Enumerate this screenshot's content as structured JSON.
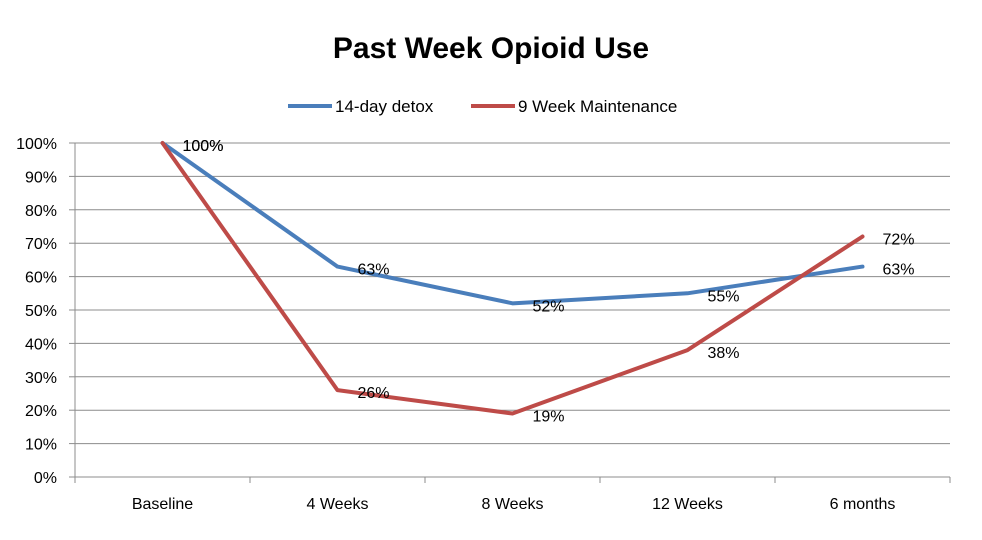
{
  "chart_data": {
    "type": "line",
    "title": "Past Week Opioid Use",
    "categories": [
      "Baseline",
      "4 Weeks",
      "8 Weeks",
      "12 Weeks",
      "6 months"
    ],
    "series": [
      {
        "name": "14-day detox",
        "color": "#4a7ebb",
        "values": [
          100,
          63,
          52,
          55,
          63
        ],
        "labels": [
          "100%",
          "63%",
          "52%",
          "55%",
          "63%"
        ]
      },
      {
        "name": "9 Week Maintenance",
        "color": "#be4b48",
        "values": [
          100,
          26,
          19,
          38,
          72
        ],
        "labels": [
          "100%",
          "26%",
          "19%",
          "38%",
          "72%"
        ]
      }
    ],
    "ylim": [
      0,
      100
    ],
    "yticks": [
      0,
      10,
      20,
      30,
      40,
      50,
      60,
      70,
      80,
      90,
      100
    ],
    "ytick_labels": [
      "0%",
      "10%",
      "20%",
      "30%",
      "40%",
      "50%",
      "60%",
      "70%",
      "80%",
      "90%",
      "100%"
    ],
    "xlabel": "",
    "ylabel": "",
    "grid": true,
    "legend_position": "top"
  }
}
